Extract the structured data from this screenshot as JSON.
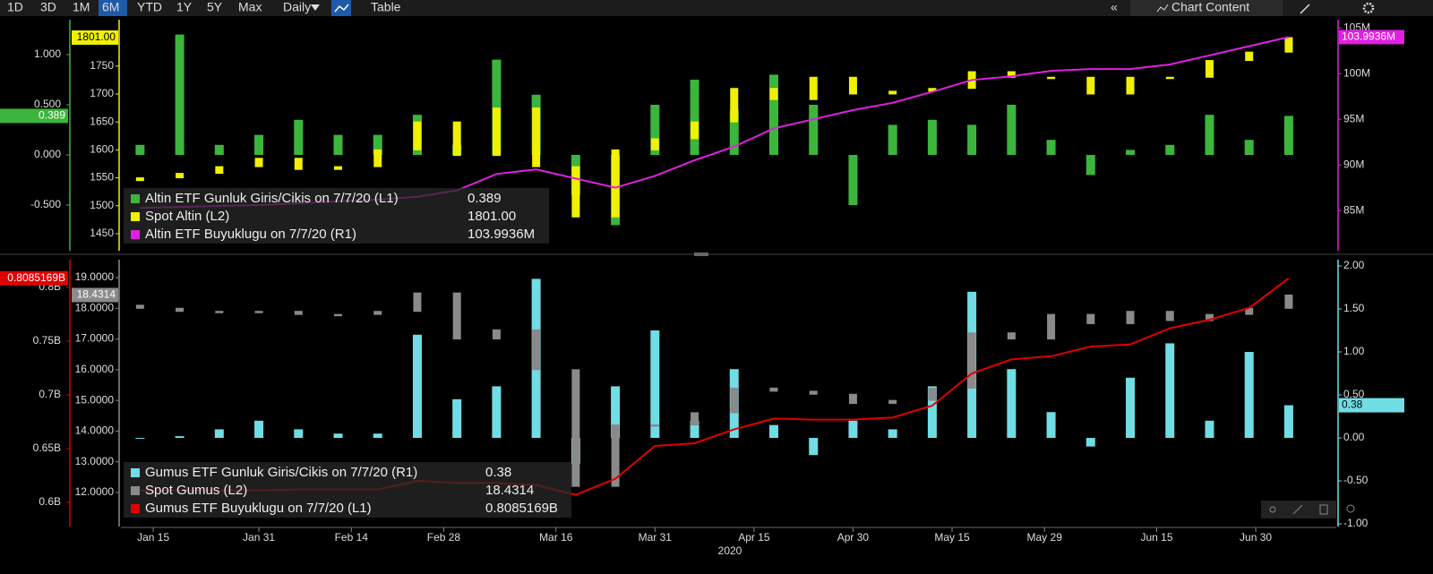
{
  "toolbar": {
    "ranges": [
      "1D",
      "3D",
      "1M",
      "6M",
      "YTD",
      "1Y",
      "5Y",
      "Max"
    ],
    "frequency": "Daily",
    "table": "Table",
    "chart_content": "Chart Content"
  },
  "chart_data": [
    {
      "type": "combo",
      "x": [
        13,
        19,
        25,
        31,
        37,
        43,
        49,
        55,
        61,
        67,
        73,
        79,
        85,
        91,
        97,
        103,
        109,
        115,
        121,
        127,
        133,
        139,
        145,
        151,
        157,
        163,
        169,
        175,
        181,
        187
      ],
      "ylim": [
        -0.955,
        1.348
      ],
      "yticks": [
        {
          "value": -0.5,
          "label": "-0.500"
        },
        {
          "value": 0,
          "label": "0.000"
        },
        {
          "value": 0.5,
          "label": "0.500"
        },
        {
          "value": 1,
          "label": "1.000"
        }
      ],
      "y2lim": [
        1419.5,
        1833
      ],
      "y2ticks": [
        1450,
        1500,
        1550,
        1600,
        1650,
        1700,
        1750
      ],
      "y3lim": [
        80.6,
        105.9
      ],
      "y3ticks": [
        {
          "value": 85,
          "label": "85M"
        },
        {
          "value": 90,
          "label": "90M"
        },
        {
          "value": 95,
          "label": "95M"
        },
        {
          "value": 100,
          "label": "100M"
        },
        {
          "value": 105,
          "label": "105M"
        }
      ],
      "grid": false,
      "series": [
        {
          "name": "Altin ETF Gunluk Giris/Cikis on 7/7/20 (L1)",
          "type": "bar",
          "axis": "y",
          "color": "#3cb53c",
          "values": [
            0.1,
            1.2,
            0.1,
            0.2,
            0.35,
            0.2,
            0.2,
            0.4,
            0.1,
            0.95,
            0.6,
            -0.4,
            -0.7,
            0.5,
            0.75,
            0.45,
            0.8,
            0.5,
            -0.5,
            0.3,
            0.35,
            0.3,
            0.5,
            0.15,
            -0.2,
            0.05,
            0.1,
            0.4,
            0.15,
            0.389
          ]
        },
        {
          "name": "Spot Altin (L2)",
          "type": "candlestick",
          "axis": "y2",
          "color": "#f0f000",
          "open": [
            1545,
            1550,
            1558,
            1570,
            1585,
            1565,
            1570,
            1600,
            1650,
            1590,
            1675,
            1570,
            1480,
            1600,
            1620,
            1650,
            1710,
            1690,
            1730,
            1700,
            1705,
            1710,
            1740,
            1730,
            1730,
            1700,
            1730,
            1730,
            1760,
            1775
          ],
          "values": [
            1550,
            1558,
            1570,
            1585,
            1565,
            1570,
            1600,
            1650,
            1590,
            1675,
            1570,
            1480,
            1600,
            1620,
            1650,
            1710,
            1690,
            1730,
            1700,
            1705,
            1710,
            1740,
            1730,
            1730,
            1700,
            1730,
            1730,
            1760,
            1775,
            1801
          ],
          "value_labels": {
            "29": "1801.00"
          }
        },
        {
          "name": "Altin ETF Buyuklugu on 7/7/20 (R1)",
          "type": "line",
          "axis": "y3",
          "color": "#e020e0",
          "values": [
            85.3,
            85.4,
            85.5,
            85.6,
            85.8,
            86,
            86.2,
            86.5,
            87.2,
            89,
            89.5,
            88.5,
            87.5,
            88.8,
            90.5,
            92,
            94,
            95,
            96,
            96.8,
            98,
            99.3,
            99.7,
            100.3,
            100.5,
            100.5,
            101,
            102,
            103,
            103.9936
          ],
          "value_labels": {
            "29": "103.9936M"
          }
        }
      ]
    },
    {
      "type": "combo",
      "x": [
        13,
        19,
        25,
        31,
        37,
        43,
        49,
        55,
        61,
        67,
        73,
        79,
        85,
        91,
        97,
        103,
        109,
        115,
        121,
        127,
        133,
        139,
        145,
        151,
        157,
        163,
        169,
        175,
        181,
        187
      ],
      "xlim": [
        10.1,
        194.2
      ],
      "xticks": [
        {
          "value": 15,
          "label": "Jan 15"
        },
        {
          "value": 31,
          "label": "Jan 31"
        },
        {
          "value": 45,
          "label": "Feb 14"
        },
        {
          "value": 59,
          "label": "Feb 28"
        },
        {
          "value": 76,
          "label": "Mar 16"
        },
        {
          "value": 91,
          "label": "Mar 31"
        },
        {
          "value": 106,
          "label": "Apr 15"
        },
        {
          "value": 121,
          "label": "Apr 30"
        },
        {
          "value": 136,
          "label": "May 15"
        },
        {
          "value": 150,
          "label": "May 29"
        },
        {
          "value": 167,
          "label": "Jun 15"
        },
        {
          "value": 182,
          "label": "Jun 30"
        }
      ],
      "xlabel": "2020",
      "ylim": [
        0.5775,
        0.8258
      ],
      "yticks": [
        {
          "value": 0.6,
          "label": "0.6B"
        },
        {
          "value": 0.65,
          "label": "0.65B"
        },
        {
          "value": 0.7,
          "label": "0.7B"
        },
        {
          "value": 0.75,
          "label": "0.75B"
        },
        {
          "value": 0.8,
          "label": "0.8B"
        }
      ],
      "y2lim": [
        10.892,
        19.583
      ],
      "y2ticks": [
        {
          "value": 12,
          "label": "12.0000"
        },
        {
          "value": 13,
          "label": "13.0000"
        },
        {
          "value": 14,
          "label": "14.0000"
        },
        {
          "value": 15,
          "label": "15.0000"
        },
        {
          "value": 16,
          "label": "16.0000"
        },
        {
          "value": 17,
          "label": "17.0000"
        },
        {
          "value": 18,
          "label": "18.0000"
        },
        {
          "value": 19,
          "label": "19.0000"
        }
      ],
      "y3lim": [
        -1.031,
        2.073
      ],
      "y3ticks": [
        {
          "value": -1,
          "label": "-1.00"
        },
        {
          "value": -0.5,
          "label": "-0.50"
        },
        {
          "value": 0,
          "label": "0.00"
        },
        {
          "value": 0.5,
          "label": "0.50"
        },
        {
          "value": 1,
          "label": "1.00"
        },
        {
          "value": 1.5,
          "label": "1.50"
        },
        {
          "value": 2,
          "label": "2.00"
        }
      ],
      "grid": false,
      "series": [
        {
          "name": "Gumus ETF Gunluk Giris/Cikis on 7/7/20 (R1)",
          "type": "bar",
          "axis": "y3",
          "color": "#70dde5",
          "values": [
            0.0,
            0.02,
            0.1,
            0.2,
            0.1,
            0.05,
            0.05,
            1.2,
            0.45,
            0.6,
            1.85,
            -0.3,
            0.6,
            1.25,
            0.2,
            0.8,
            0.15,
            -0.2,
            0.2,
            0.1,
            0.6,
            1.7,
            0.8,
            0.3,
            -0.1,
            0.7,
            1.1,
            0.2,
            1.0,
            0.38
          ]
        },
        {
          "name": "Spot Gumus (L2)",
          "type": "candlestick",
          "axis": "y2",
          "color": "#8a8a8a",
          "open": [
            18.1,
            18.0,
            17.9,
            17.9,
            17.9,
            17.8,
            17.8,
            17.9,
            18.5,
            17.0,
            17.3,
            16.0,
            12.2,
            14.2,
            14.2,
            14.6,
            15.4,
            15.3,
            15.2,
            14.9,
            15.0,
            15.4,
            17.2,
            17.0,
            17.8,
            17.5,
            17.9,
            17.6,
            17.8,
            18.0
          ],
          "values": [
            18.0,
            17.9,
            17.9,
            17.9,
            17.8,
            17.8,
            17.9,
            18.5,
            17.0,
            17.3,
            16.0,
            12.2,
            14.2,
            14.2,
            14.6,
            15.4,
            15.3,
            15.2,
            14.9,
            15.0,
            15.4,
            17.2,
            17.0,
            17.8,
            17.5,
            17.9,
            17.6,
            17.8,
            18.0,
            18.4314
          ]
        },
        {
          "name": "Gumus ETF Buyuklugu on 7/7/20 (L1)",
          "type": "line",
          "axis": "y",
          "color": "#e00000",
          "values": [
            0.611,
            0.611,
            0.611,
            0.611,
            0.612,
            0.612,
            0.612,
            0.62,
            0.618,
            0.618,
            0.616,
            0.607,
            0.622,
            0.6525,
            0.655,
            0.668,
            0.678,
            0.677,
            0.677,
            0.679,
            0.69,
            0.72,
            0.733,
            0.736,
            0.745,
            0.747,
            0.762,
            0.77,
            0.781,
            0.8085169
          ],
          "value_labels": {
            "29": "0.8085169B"
          }
        }
      ]
    }
  ]
}
